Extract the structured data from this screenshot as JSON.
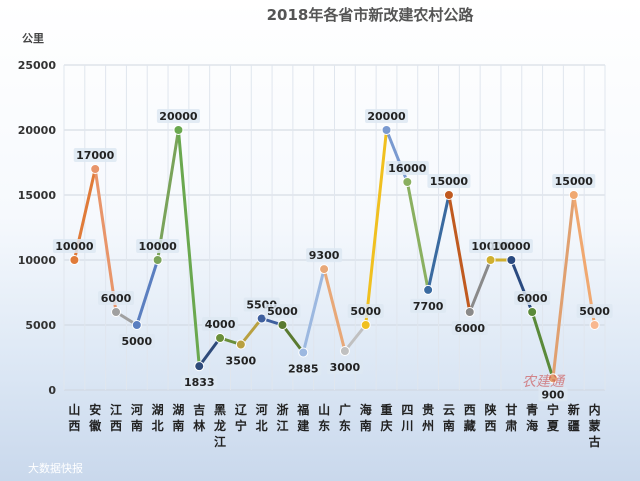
{
  "chart_data": {
    "type": "line",
    "title": "2018年各省市新改建农村公路",
    "ylabel": "公里",
    "ylim": [
      0,
      25000
    ],
    "yticks": [
      0,
      5000,
      10000,
      15000,
      20000,
      25000
    ],
    "grid": true,
    "categories": [
      "山西",
      "安徽",
      "江西",
      "河南",
      "湖北",
      "湖南",
      "吉林",
      "黑龙江",
      "辽宁",
      "河北",
      "浙江",
      "福建",
      "山东",
      "广东",
      "海南",
      "重庆",
      "四川",
      "贵州",
      "云南",
      "西藏",
      "陕西",
      "甘肃",
      "青海",
      "宁夏",
      "新疆",
      "内蒙古"
    ],
    "values": [
      10000,
      17000,
      6000,
      5000,
      10000,
      20000,
      1833,
      4000,
      3500,
      5500,
      5000,
      2885,
      9300,
      3000,
      5000,
      20000,
      16000,
      7700,
      15000,
      6000,
      10000,
      10000,
      6000,
      900,
      15000,
      5000
    ],
    "colors": [
      "#e07b39",
      "#e8956a",
      "#a0a0a0",
      "#5b7fc0",
      "#7aa35a",
      "#6aa84f",
      "#2e4a7a",
      "#6a8f3a",
      "#b8a040",
      "#3e5f9e",
      "#5a7a30",
      "#9cb8e0",
      "#e8a878",
      "#c0c0c0",
      "#f0c020",
      "#7a9ad0",
      "#8ab060",
      "#3a6aa0",
      "#c05a20",
      "#8a8a8a",
      "#d0b030",
      "#2a4a80",
      "#5a8a3a",
      "#e0a070",
      "#f0a870",
      "#f8b890"
    ]
  },
  "watermark": "农建通",
  "source": "大数据快报"
}
